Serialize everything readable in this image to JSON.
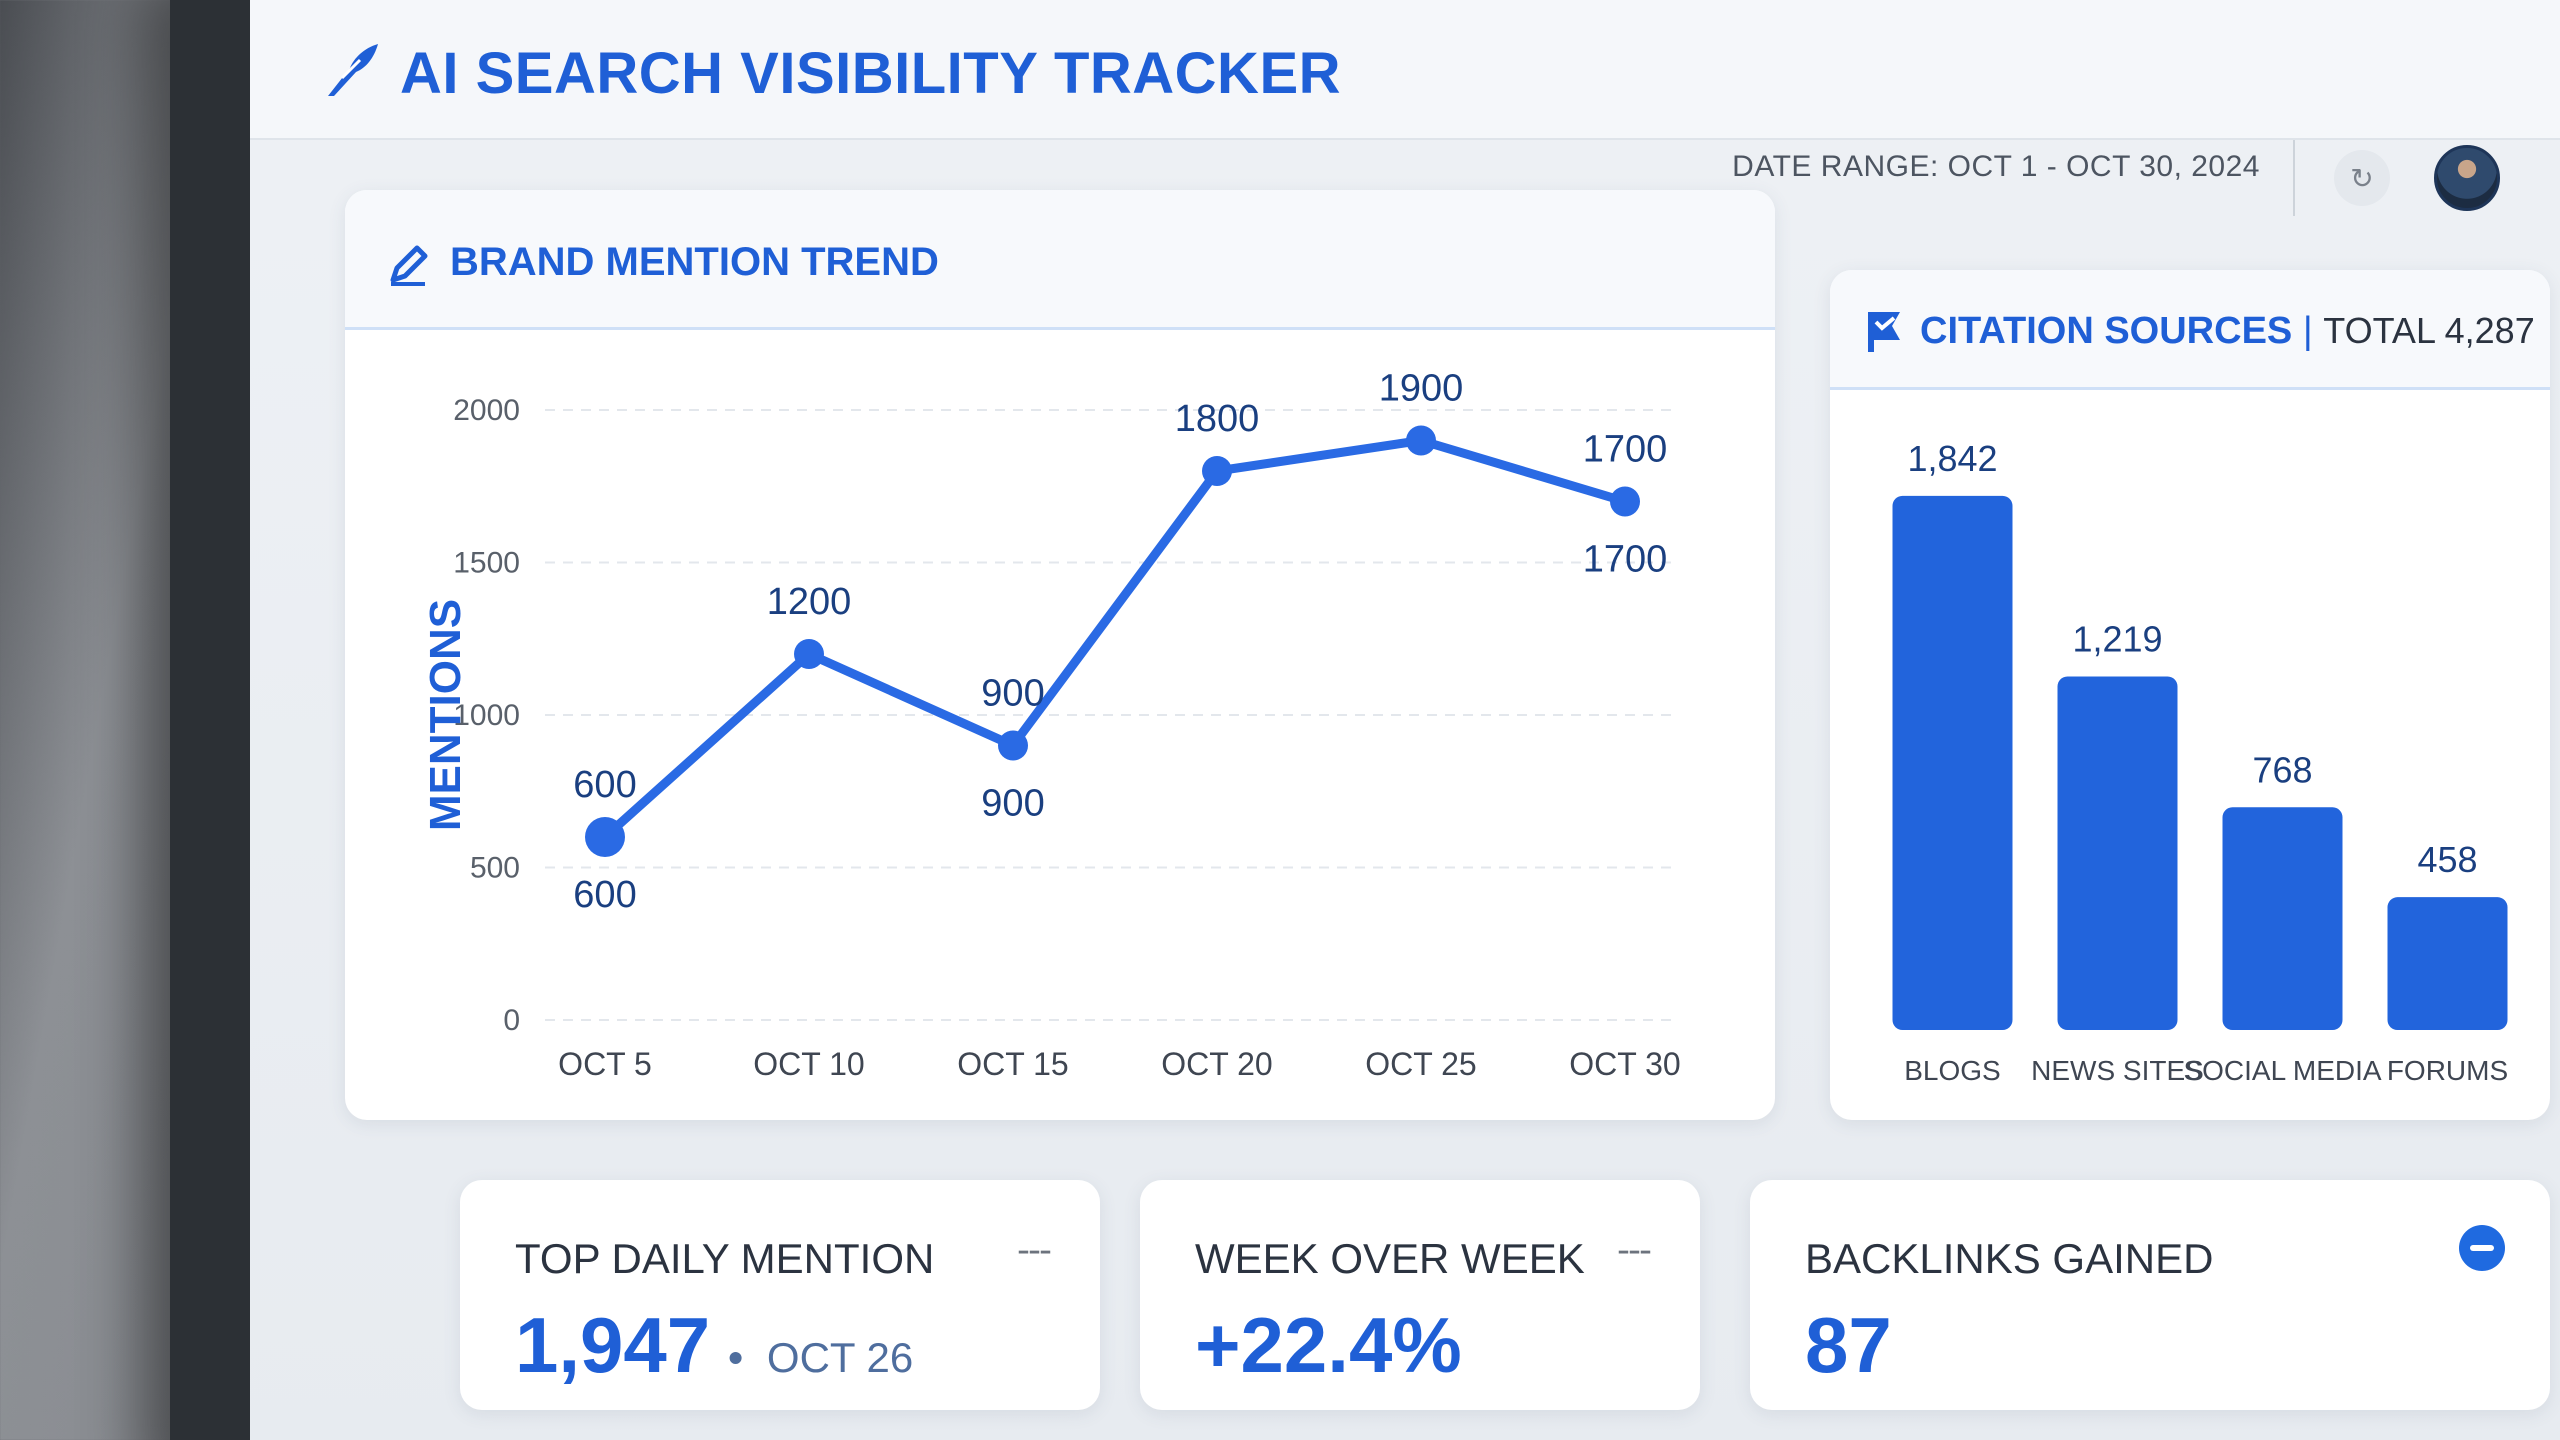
{
  "header": {
    "title": "AI SEARCH VISIBILITY TRACKER",
    "date_range": "DATE RANGE: OCT 1 - OCT 30, 2024"
  },
  "colors": {
    "accent": "#1f5fd6",
    "bar": "#2264dc",
    "line": "#2a6ae4"
  },
  "trend": {
    "title": "BRAND MENTION TREND"
  },
  "citations": {
    "title": "CITATION SOURCES",
    "total_label": "TOTAL 4,287"
  },
  "chart_data": [
    {
      "type": "line",
      "title": "BRAND MENTION TREND",
      "ylabel": "MENTIONS",
      "xlabel": "",
      "categories": [
        "OCT 5",
        "OCT 10",
        "OCT 15",
        "OCT 20",
        "OCT 25",
        "OCT 30"
      ],
      "values": [
        600,
        1200,
        900,
        1800,
        1900,
        1700
      ],
      "ylim": [
        0,
        2000
      ],
      "yticks": [
        0,
        500,
        1000,
        1500,
        2000
      ],
      "grid": true
    },
    {
      "type": "bar",
      "title": "CITATION SOURCES",
      "categories": [
        "BLOGS",
        "NEWS SITES",
        "SOCIAL MEDIA",
        "FORUMS"
      ],
      "values": [
        1842,
        1219,
        768,
        458
      ],
      "value_labels": [
        "1,842",
        "1,219",
        "768",
        "458"
      ],
      "ylim": [
        0,
        2000
      ]
    }
  ],
  "kpis": {
    "top_daily": {
      "label": "TOP DAILY MENTION",
      "value": "1,947",
      "date": "OCT 26",
      "menu": "---"
    },
    "wow": {
      "label": "WEEK OVER WEEK",
      "value": "+22.4%",
      "menu": "---"
    },
    "backlinks": {
      "label": "BACKLINKS GAINED",
      "value": "87"
    }
  }
}
